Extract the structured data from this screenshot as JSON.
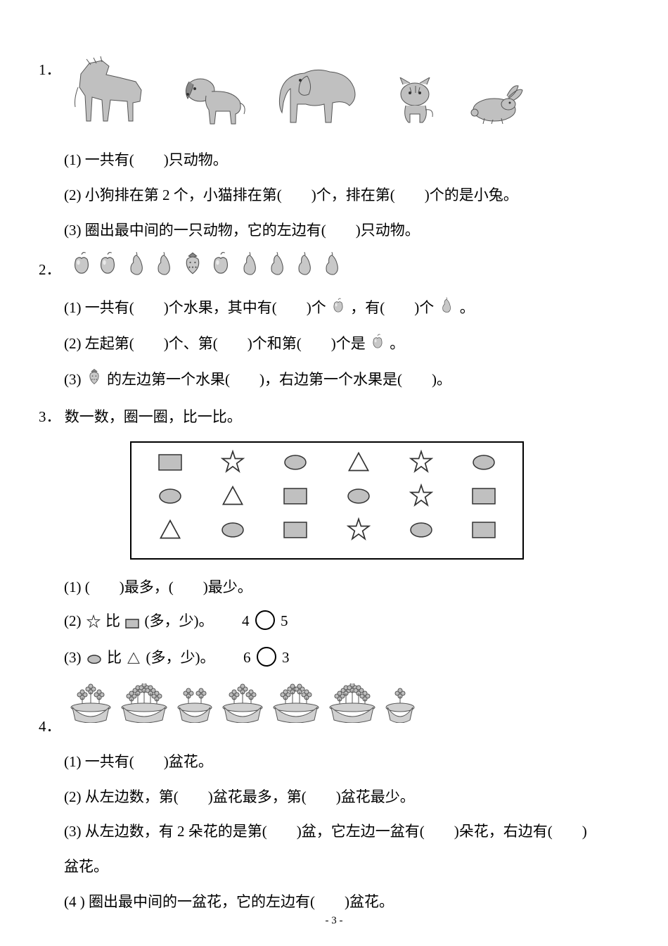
{
  "q1": {
    "num": "1．",
    "s1": "(1) 一共有(　　)只动物。",
    "s2": "(2) 小狗排在第 2 个，小猫排在第(　　)个，排在第(　　)个的是小兔。",
    "s3": "(3) 圈出最中间的一只动物，它的左边有(　　)只动物。",
    "colors": {
      "fill": "#c0c0c0",
      "stroke": "#555555"
    }
  },
  "q2": {
    "num": "2．",
    "s1a": "(1) 一共有(　　)个水果，其中有(　　)个",
    "s1b": "，有(　　)个",
    "s1c": "。",
    "s2a": "(2) 左起第(　　)个、第(　　)个和第(　　)个是",
    "s2b": "。",
    "s3a": "(3) ",
    "s3b": "的左边第一个水果(　　)，右边第一个水果是(　　)。",
    "colors": {
      "fruit_fill": "#c8c8c8",
      "fruit_stroke": "#555555"
    }
  },
  "q3": {
    "num": "3．",
    "title": "数一数，圈一圈，比一比。",
    "grid": {
      "rows": 3,
      "cols": 6,
      "cells": [
        "square",
        "star",
        "oval",
        "triangle",
        "star",
        "oval",
        "oval",
        "triangle",
        "square",
        "oval",
        "star",
        "square",
        "triangle",
        "oval",
        "square",
        "star",
        "oval",
        "square"
      ],
      "colors": {
        "fill": "#c0c0c0",
        "stroke": "#333333",
        "border": "#000000"
      }
    },
    "s1": "(1) (　　)最多，(　　)最少。",
    "s2a": "(2) ",
    "s2b": "比",
    "s2c": "(多，少)。",
    "s2lhs": "4",
    "s2rhs": "5",
    "s3a": "(3) ",
    "s3b": "比",
    "s3c": "(多，少)。",
    "s3lhs": "6",
    "s3rhs": "3"
  },
  "q4": {
    "num": "4．",
    "flower_counts": [
      3,
      5,
      2,
      3,
      4,
      5,
      1
    ],
    "pot_colors": {
      "pot_fill": "#d0d0d0",
      "flower_fill": "#bdbdbd",
      "stroke": "#555555"
    },
    "s1": "(1) 一共有(　　)盆花。",
    "s2": "(2) 从左边数，第(　　)盆花最多，第(　　)盆花最少。",
    "s3": "(3) 从左边数，有 2 朵花的是第(　　)盆，它左边一盆有(　　)朵花，右边有(　　)",
    "s3b": "盆花。",
    "s4": "(4 ) 圈出最中间的一盆花，它的左边有(　　)盆花。"
  },
  "page_num": "- 3 -"
}
